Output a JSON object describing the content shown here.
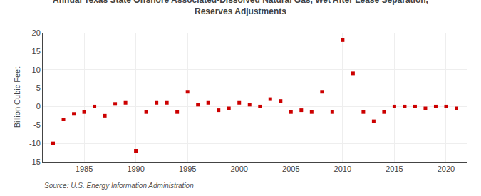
{
  "chart_data": {
    "type": "scatter",
    "title": "Annual Texas State Offshore Associated-Dissolved Natural Gas, Wet After Lease Separation,\nReserves Adjustments",
    "ylabel": "Billion Cubic Feet",
    "annotations": [
      "Source: U.S. Energy Information Administration"
    ],
    "x": [
      1982,
      1983,
      1984,
      1985,
      1986,
      1987,
      1988,
      1989,
      1990,
      1991,
      1992,
      1993,
      1994,
      1995,
      1996,
      1997,
      1998,
      1999,
      2000,
      2001,
      2002,
      2003,
      2004,
      2005,
      2006,
      2007,
      2008,
      2009,
      2010,
      2011,
      2012,
      2013,
      2014,
      2015,
      2016,
      2017,
      2018,
      2019,
      2020,
      2021
    ],
    "values": [
      -10.0,
      -3.5,
      -2.0,
      -1.5,
      0.0,
      -2.5,
      0.7,
      1.0,
      -12.0,
      -1.5,
      1.0,
      1.0,
      -1.5,
      4.0,
      0.5,
      1.0,
      -1.0,
      -0.5,
      1.0,
      0.5,
      0.0,
      2.0,
      1.5,
      -1.5,
      -1.0,
      -1.5,
      4.0,
      -1.5,
      18.0,
      9.0,
      -1.5,
      -4.0,
      -1.5,
      0.0,
      0.0,
      0.0,
      -0.5,
      0.0,
      0.0,
      -0.5
    ],
    "color": "#cc0000",
    "marker": "square",
    "xlim": [
      1981,
      2022
    ],
    "xticks": [
      1985,
      1990,
      1995,
      2000,
      2005,
      2010,
      2015,
      2020
    ],
    "ylim": [
      -15,
      20
    ],
    "yticks": [
      -15,
      -10,
      -5,
      0,
      5,
      10,
      15,
      20
    ],
    "grid": true
  }
}
